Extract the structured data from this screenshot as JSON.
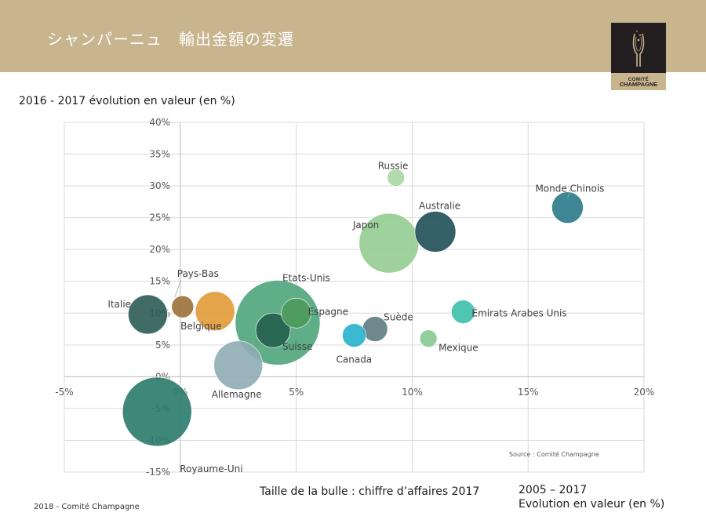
{
  "header": {
    "title": "シャンパーニュ　輸出金額の変遷",
    "logo_line1": "COMITÉ",
    "logo_line2": "CHAMPAGNE"
  },
  "footer": {
    "text": "2018 - Comité Champagne"
  },
  "colors": {
    "header_band": "#c8b58e",
    "logo_bg": "#231f20"
  },
  "chart_data": {
    "type": "scatter",
    "subtype": "bubble",
    "title": "2016 - 2017 évolution en valeur (en %)",
    "xlabel_line1": "2005 – 2017",
    "xlabel_line2": "Evolution en valeur (en %)",
    "bubble_size_label": "Taille de la bulle : chiffre d’affaires 2017",
    "source": "Source : Comité Champagne",
    "xlim": [
      -5,
      20
    ],
    "ylim": [
      -15,
      40
    ],
    "x_ticks": [
      "-5%",
      "0%",
      "5%",
      "10%",
      "15%",
      "20%"
    ],
    "y_ticks": [
      "-15%",
      "-10%",
      "-5%",
      "0%",
      "5%",
      "10%",
      "15%",
      "20%",
      "25%",
      "30%",
      "35%",
      "40%"
    ],
    "grid": true,
    "points": [
      {
        "name": "Royaume-Uni",
        "x": -1.0,
        "y": -5.5,
        "r": 44,
        "color": "#2a7a6a"
      },
      {
        "name": "Etats-Unis",
        "x": 4.2,
        "y": 8.5,
        "r": 54,
        "color": "#4ea57a"
      },
      {
        "name": "Japon",
        "x": 9.0,
        "y": 21.0,
        "r": 38,
        "color": "#94cc90"
      },
      {
        "name": "Allemagne",
        "x": 2.5,
        "y": 1.8,
        "r": 31,
        "color": "#8eadb4"
      },
      {
        "name": "Australie",
        "x": 11.0,
        "y": 22.8,
        "r": 26,
        "color": "#1f4f57"
      },
      {
        "name": "Italie",
        "x": -1.4,
        "y": 9.8,
        "r": 25,
        "color": "#2c5c54"
      },
      {
        "name": "Belgique",
        "x": 1.5,
        "y": 10.3,
        "r": 25,
        "color": "#e09a36"
      },
      {
        "name": "Suisse",
        "x": 4.0,
        "y": 7.3,
        "r": 22,
        "color": "#235f4e"
      },
      {
        "name": "Monde Chinois",
        "x": 16.7,
        "y": 26.6,
        "r": 20,
        "color": "#2a7a88"
      },
      {
        "name": "Espagne",
        "x": 5.0,
        "y": 10.0,
        "r": 19,
        "color": "#4c9a5c"
      },
      {
        "name": "Suède",
        "x": 8.4,
        "y": 7.5,
        "r": 16,
        "color": "#5e7c82"
      },
      {
        "name": "Canada",
        "x": 7.5,
        "y": 6.5,
        "r": 15,
        "color": "#27b0cc"
      },
      {
        "name": "Émirats Arabes Unis",
        "x": 12.2,
        "y": 10.2,
        "r": 15,
        "color": "#3cc0a8"
      },
      {
        "name": "Pays-Bas",
        "x": 0.1,
        "y": 11.0,
        "r": 14,
        "color": "#9c7038"
      },
      {
        "name": "Russie",
        "x": 9.3,
        "y": 31.3,
        "r": 11,
        "color": "#a8d6a4"
      },
      {
        "name": "Mexique",
        "x": 10.7,
        "y": 6.0,
        "r": 11,
        "color": "#86c994"
      }
    ]
  }
}
